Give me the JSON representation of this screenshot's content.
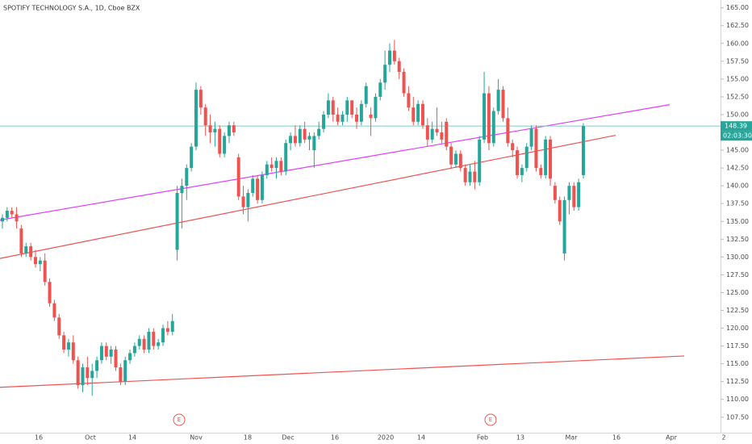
{
  "chart_data": {
    "type": "candlestick",
    "title": "SPOTIFY TECHNOLOGY S.A., 1D, Cboe BZX",
    "candles": [
      [
        135,
        136,
        134,
        135.5
      ],
      [
        135.5,
        137,
        135,
        136.5
      ],
      [
        136.5,
        137,
        135.5,
        136
      ],
      [
        136,
        137,
        134,
        135
      ],
      [
        134,
        134.5,
        130,
        130.5
      ],
      [
        130.5,
        132,
        130,
        131.5
      ],
      [
        131.5,
        132,
        129.5,
        130
      ],
      [
        130,
        131,
        128.5,
        129
      ],
      [
        129,
        130,
        128,
        129.5
      ],
      [
        129.5,
        130.5,
        126,
        126.5
      ],
      [
        126.5,
        127,
        123,
        123.5
      ],
      [
        123.5,
        124,
        121,
        121.5
      ],
      [
        121.5,
        122,
        118.5,
        119
      ],
      [
        119,
        119.5,
        116.5,
        117
      ],
      [
        117,
        118.5,
        116,
        118
      ],
      [
        118,
        119,
        115,
        115.5
      ],
      [
        115.5,
        116,
        111.5,
        112
      ],
      [
        112,
        115,
        111,
        114.5
      ],
      [
        114.5,
        116,
        112,
        113
      ],
      [
        113,
        115,
        110.5,
        114
      ],
      [
        114,
        116,
        113,
        115.5
      ],
      [
        115.5,
        118,
        115,
        117.5
      ],
      [
        117.5,
        118,
        115.5,
        116
      ],
      [
        116,
        117.5,
        115,
        117
      ],
      [
        117,
        117.5,
        114,
        114.5
      ],
      [
        114.5,
        115,
        112,
        112.5
      ],
      [
        112.5,
        116,
        112,
        115.5
      ],
      [
        115.5,
        117,
        115,
        116.5
      ],
      [
        116.5,
        118,
        116,
        117.5
      ],
      [
        117.5,
        119,
        117,
        118.5
      ],
      [
        118.5,
        119,
        116.5,
        117
      ],
      [
        117,
        120,
        116.5,
        119.5
      ],
      [
        119.5,
        120,
        117,
        117.5
      ],
      [
        117.5,
        118.5,
        117,
        118
      ],
      [
        118,
        120.5,
        117.5,
        120
      ],
      [
        120,
        121,
        119,
        119.5
      ],
      [
        119.5,
        122,
        119,
        121
      ],
      [
        131,
        140,
        129.5,
        139
      ],
      [
        139,
        141,
        134,
        140
      ],
      [
        140,
        143,
        138,
        142.5
      ],
      [
        142.5,
        146,
        142,
        145.5
      ],
      [
        145.5,
        154.5,
        145,
        153.5
      ],
      [
        153.5,
        154,
        150,
        151
      ],
      [
        151,
        151.5,
        147,
        148.5
      ],
      [
        148.5,
        150,
        146,
        147.5
      ],
      [
        147.5,
        149,
        145.5,
        148
      ],
      [
        148,
        148.5,
        144,
        144.5
      ],
      [
        144.5,
        147.5,
        144,
        147
      ],
      [
        147,
        149,
        146,
        148.5
      ],
      [
        148.5,
        149,
        147,
        147.5
      ],
      [
        144,
        144.5,
        138,
        138.5
      ],
      [
        138.5,
        140,
        136,
        137
      ],
      [
        137,
        139.5,
        135,
        139
      ],
      [
        139,
        141.5,
        138.5,
        141
      ],
      [
        141,
        141.5,
        137.5,
        138
      ],
      [
        138,
        142,
        137.5,
        141.5
      ],
      [
        141.5,
        143.5,
        141,
        143
      ],
      [
        143,
        144,
        142,
        142.5
      ],
      [
        142.5,
        144,
        141,
        143.5
      ],
      [
        143.5,
        144,
        141.5,
        142
      ],
      [
        142,
        146.5,
        141.5,
        146
      ],
      [
        146,
        147.5,
        145,
        147
      ],
      [
        147,
        148.5,
        145.5,
        146
      ],
      [
        146,
        148.5,
        145.5,
        148
      ],
      [
        148,
        149,
        146,
        146.5
      ],
      [
        146.5,
        147.5,
        145,
        147
      ],
      [
        145,
        147.5,
        142.5,
        147
      ],
      [
        147,
        149,
        146.5,
        148
      ],
      [
        148,
        150.5,
        147.5,
        150
      ],
      [
        150,
        153,
        149.5,
        152
      ],
      [
        152,
        152.5,
        149,
        150
      ],
      [
        150,
        151,
        148.5,
        149
      ],
      [
        149,
        150.5,
        148.5,
        150
      ],
      [
        150,
        152.5,
        149,
        152
      ],
      [
        152,
        152,
        149.5,
        150
      ],
      [
        150,
        151,
        148,
        149
      ],
      [
        149,
        152,
        148.5,
        151.5
      ],
      [
        151.5,
        154.5,
        151,
        154
      ],
      [
        150,
        151,
        147,
        149.5
      ],
      [
        149.5,
        153,
        149,
        152.5
      ],
      [
        152.5,
        155,
        152,
        154.5
      ],
      [
        154.5,
        159,
        153.5,
        157
      ],
      [
        157,
        160,
        156,
        159
      ],
      [
        159,
        160.5,
        157,
        157.5
      ],
      [
        157.5,
        158,
        155,
        156
      ],
      [
        156,
        156.5,
        152.5,
        153
      ],
      [
        153,
        154,
        150.5,
        151
      ],
      [
        151,
        152.5,
        148.5,
        149
      ],
      [
        149,
        152,
        148.5,
        151.5
      ],
      [
        151.5,
        152,
        148,
        148.5
      ],
      [
        148.5,
        149.5,
        145.5,
        146.5
      ],
      [
        146.5,
        149,
        146,
        148
      ],
      [
        148,
        151,
        147,
        147.5
      ],
      [
        147.5,
        149,
        146,
        146.5
      ],
      [
        149,
        149.5,
        145,
        145.5
      ],
      [
        145.5,
        146,
        142.5,
        143
      ],
      [
        143,
        145,
        142.5,
        144.5
      ],
      [
        144.5,
        145,
        142,
        142.5
      ],
      [
        142.5,
        143,
        140,
        140.5
      ],
      [
        140.5,
        143,
        140,
        142
      ],
      [
        142,
        143.5,
        139.5,
        140.5
      ],
      [
        140.5,
        147,
        140,
        146.5
      ],
      [
        146.5,
        156,
        146,
        153
      ],
      [
        153,
        154,
        145,
        146
      ],
      [
        146,
        151,
        145.5,
        150.5
      ],
      [
        150.5,
        155,
        150,
        153.5
      ],
      [
        153.5,
        154,
        149,
        149.5
      ],
      [
        149.5,
        151,
        145.5,
        146
      ],
      [
        146,
        146.5,
        144,
        145
      ],
      [
        145,
        145.5,
        141,
        141.5
      ],
      [
        141.5,
        143,
        140.5,
        142.5
      ],
      [
        142.5,
        146,
        142,
        145.5
      ],
      [
        145.5,
        148.5,
        145,
        148
      ],
      [
        148,
        148.5,
        142,
        142.5
      ],
      [
        142.5,
        143,
        141,
        141.5
      ],
      [
        141.5,
        147,
        141,
        146.5
      ],
      [
        146.5,
        147,
        140,
        141
      ],
      [
        140,
        140.5,
        137.5,
        138
      ],
      [
        138,
        138.5,
        134.5,
        135
      ],
      [
        130.5,
        138.5,
        129.5,
        138
      ],
      [
        138,
        140.5,
        136,
        140
      ],
      [
        140,
        140.5,
        136.5,
        137
      ],
      [
        137,
        141,
        136.5,
        140.5
      ],
      [
        141.5,
        148.8,
        141,
        148.39
      ]
    ],
    "up_color": "#26a69a",
    "down_color": "#ef5350",
    "ylim": [
      106,
      166.1
    ],
    "yticks": [
      {
        "value": 107.5,
        "label": "107.50"
      },
      {
        "value": 110,
        "label": "110.00"
      },
      {
        "value": 112.5,
        "label": "112.50"
      },
      {
        "value": 115,
        "label": "115.00"
      },
      {
        "value": 117.5,
        "label": "117.50"
      },
      {
        "value": 120,
        "label": "120.00"
      },
      {
        "value": 122.5,
        "label": "122.50"
      },
      {
        "value": 125,
        "label": "125.00"
      },
      {
        "value": 127.5,
        "label": "127.50"
      },
      {
        "value": 130,
        "label": "130.00"
      },
      {
        "value": 132.5,
        "label": "132.50"
      },
      {
        "value": 135,
        "label": "135.00"
      },
      {
        "value": 137.5,
        "label": "137.50"
      },
      {
        "value": 140,
        "label": "140.00"
      },
      {
        "value": 142.5,
        "label": "142.50"
      },
      {
        "value": 145,
        "label": "145.00"
      },
      {
        "value": 147.5,
        "label": "147.50"
      },
      {
        "value": 150,
        "label": "150.00"
      },
      {
        "value": 152.5,
        "label": "152.50"
      },
      {
        "value": 155,
        "label": "155.00"
      },
      {
        "value": 157.5,
        "label": "157.50"
      },
      {
        "value": 160,
        "label": "160.00"
      },
      {
        "value": 162.5,
        "label": "162.50"
      },
      {
        "value": 165,
        "label": "165.00"
      }
    ],
    "xtick_labels": [
      "16",
      "Oct",
      "14",
      "Nov",
      "18",
      "Dec",
      "16",
      "2020",
      "14",
      "Feb",
      "13",
      "Mar",
      "16",
      "Apr",
      "2"
    ],
    "trendlines": [
      {
        "color": "#e040fb",
        "prices": [
          135.2,
          151.4
        ]
      },
      {
        "color": "#ef5350",
        "prices": [
          129.8,
          147.1
        ]
      },
      {
        "color": "#ef5350",
        "prices": [
          111.7,
          116.1
        ]
      }
    ],
    "price_line_color": "#80cbc4",
    "countdown": "02:03:30",
    "earnings_marker": "E"
  }
}
